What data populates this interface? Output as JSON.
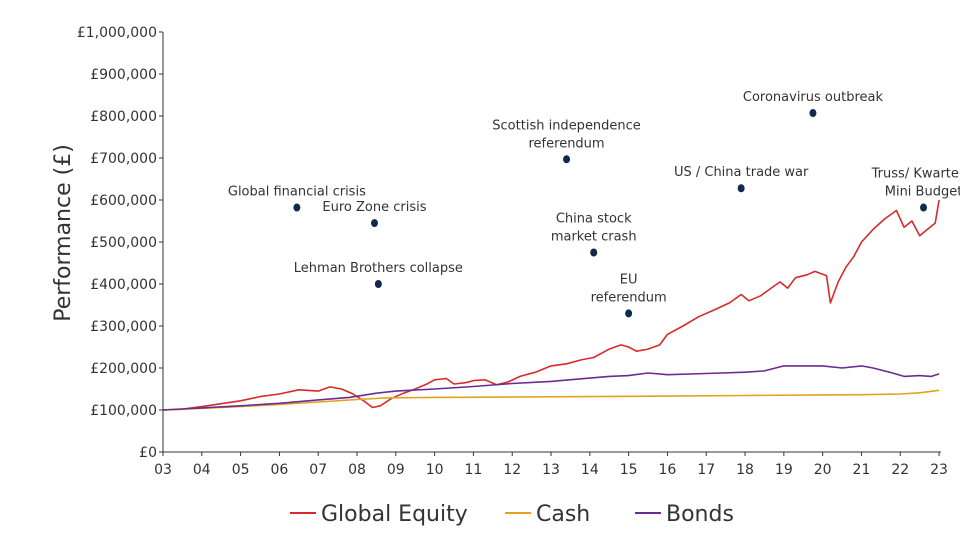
{
  "chart_data": {
    "type": "line",
    "title": "",
    "xlabel": "",
    "ylabel": "Performance (£)",
    "xlim": [
      2003,
      2023.05
    ],
    "ylim": [
      0,
      1000000
    ],
    "x_ticks": [
      "03",
      "04",
      "05",
      "06",
      "07",
      "08",
      "09",
      "10",
      "11",
      "12",
      "13",
      "14",
      "15",
      "16",
      "17",
      "18",
      "19",
      "20",
      "21",
      "22",
      "23"
    ],
    "y_ticks": [
      "£0",
      "£100,000",
      "£200,000",
      "£300,000",
      "£400,000",
      "£500,000",
      "£600,000",
      "£700,000",
      "£800,000",
      "£900,000",
      "£1,000,000"
    ],
    "grid": false,
    "legend_position": "bottom",
    "series": [
      {
        "name": "Global Equity",
        "color": "#d62b2b",
        "points": [
          [
            2003.0,
            100000
          ],
          [
            2003.5,
            102000
          ],
          [
            2004.0,
            108000
          ],
          [
            2004.5,
            115000
          ],
          [
            2005.0,
            122000
          ],
          [
            2005.5,
            132000
          ],
          [
            2006.0,
            138000
          ],
          [
            2006.5,
            148000
          ],
          [
            2007.0,
            145000
          ],
          [
            2007.3,
            155000
          ],
          [
            2007.6,
            150000
          ],
          [
            2007.9,
            138000
          ],
          [
            2008.2,
            120000
          ],
          [
            2008.4,
            106000
          ],
          [
            2008.6,
            110000
          ],
          [
            2008.9,
            128000
          ],
          [
            2009.2,
            140000
          ],
          [
            2009.5,
            150000
          ],
          [
            2009.8,
            162000
          ],
          [
            2010.0,
            172000
          ],
          [
            2010.3,
            175000
          ],
          [
            2010.5,
            162000
          ],
          [
            2010.8,
            165000
          ],
          [
            2011.0,
            170000
          ],
          [
            2011.3,
            172000
          ],
          [
            2011.6,
            160000
          ],
          [
            2011.9,
            167000
          ],
          [
            2012.2,
            180000
          ],
          [
            2012.6,
            190000
          ],
          [
            2013.0,
            205000
          ],
          [
            2013.4,
            210000
          ],
          [
            2013.8,
            220000
          ],
          [
            2014.1,
            225000
          ],
          [
            2014.5,
            245000
          ],
          [
            2014.8,
            255000
          ],
          [
            2015.0,
            250000
          ],
          [
            2015.2,
            240000
          ],
          [
            2015.5,
            245000
          ],
          [
            2015.8,
            255000
          ],
          [
            2016.0,
            280000
          ],
          [
            2016.4,
            300000
          ],
          [
            2016.8,
            322000
          ],
          [
            2017.2,
            338000
          ],
          [
            2017.6,
            355000
          ],
          [
            2017.9,
            375000
          ],
          [
            2018.1,
            360000
          ],
          [
            2018.4,
            372000
          ],
          [
            2018.7,
            392000
          ],
          [
            2018.9,
            405000
          ],
          [
            2019.1,
            390000
          ],
          [
            2019.3,
            415000
          ],
          [
            2019.6,
            422000
          ],
          [
            2019.8,
            430000
          ],
          [
            2020.1,
            420000
          ],
          [
            2020.2,
            355000
          ],
          [
            2020.4,
            405000
          ],
          [
            2020.6,
            440000
          ],
          [
            2020.8,
            465000
          ],
          [
            2021.0,
            500000
          ],
          [
            2021.3,
            530000
          ],
          [
            2021.6,
            555000
          ],
          [
            2021.9,
            575000
          ],
          [
            2022.1,
            535000
          ],
          [
            2022.3,
            550000
          ],
          [
            2022.5,
            515000
          ],
          [
            2022.7,
            530000
          ],
          [
            2022.9,
            545000
          ],
          [
            2023.0,
            600000
          ]
        ]
      },
      {
        "name": "Cash",
        "color": "#e3a21a",
        "points": [
          [
            2003.0,
            100000
          ],
          [
            2004.0,
            104000
          ],
          [
            2005.0,
            108000
          ],
          [
            2006.0,
            113000
          ],
          [
            2007.0,
            119000
          ],
          [
            2008.0,
            125000
          ],
          [
            2008.8,
            129000
          ],
          [
            2010.0,
            130000
          ],
          [
            2012.0,
            131000
          ],
          [
            2014.0,
            132000
          ],
          [
            2016.0,
            133000
          ],
          [
            2018.0,
            134500
          ],
          [
            2020.0,
            136000
          ],
          [
            2021.0,
            136500
          ],
          [
            2022.0,
            138000
          ],
          [
            2022.5,
            141000
          ],
          [
            2023.0,
            147000
          ]
        ]
      },
      {
        "name": "Bonds",
        "color": "#6a2c91",
        "points": [
          [
            2003.0,
            100000
          ],
          [
            2004.0,
            105000
          ],
          [
            2005.0,
            110000
          ],
          [
            2006.0,
            116000
          ],
          [
            2007.0,
            124000
          ],
          [
            2007.8,
            130000
          ],
          [
            2008.5,
            140000
          ],
          [
            2009.0,
            145000
          ],
          [
            2010.0,
            150000
          ],
          [
            2011.0,
            156000
          ],
          [
            2012.0,
            163000
          ],
          [
            2013.0,
            168000
          ],
          [
            2014.0,
            176000
          ],
          [
            2014.5,
            180000
          ],
          [
            2015.0,
            182000
          ],
          [
            2015.5,
            188000
          ],
          [
            2016.0,
            184000
          ],
          [
            2017.0,
            187000
          ],
          [
            2018.0,
            190000
          ],
          [
            2018.5,
            193000
          ],
          [
            2019.0,
            205000
          ],
          [
            2019.5,
            205000
          ],
          [
            2020.0,
            205000
          ],
          [
            2020.5,
            200000
          ],
          [
            2021.0,
            205000
          ],
          [
            2021.3,
            200000
          ],
          [
            2021.8,
            188000
          ],
          [
            2022.1,
            180000
          ],
          [
            2022.5,
            182000
          ],
          [
            2022.8,
            180000
          ],
          [
            2023.0,
            186000
          ]
        ]
      }
    ],
    "annotations": [
      {
        "lines": [
          "Global financial crisis"
        ],
        "x": 2006.45,
        "y": 582000
      },
      {
        "lines": [
          "Lehman Brothers collapse"
        ],
        "x": 2008.55,
        "y": 400000
      },
      {
        "lines": [
          "Euro Zone crisis"
        ],
        "x": 2008.45,
        "y": 545000
      },
      {
        "lines": [
          "Scottish  independence",
          "referendum"
        ],
        "x": 2013.4,
        "y": 697000
      },
      {
        "lines": [
          "China stock",
          "market crash"
        ],
        "x": 2014.1,
        "y": 475000
      },
      {
        "lines": [
          "EU",
          "referendum"
        ],
        "x": 2015.0,
        "y": 330000
      },
      {
        "lines": [
          "US / China trade war"
        ],
        "x": 2017.9,
        "y": 628000
      },
      {
        "lines": [
          "Coronavirus outbreak"
        ],
        "x": 2019.75,
        "y": 807000
      },
      {
        "lines": [
          "Truss/ Kwarteng",
          "Mini Budget"
        ],
        "x": 2022.6,
        "y": 582000
      }
    ],
    "marker_color": "#0f2a4a"
  }
}
